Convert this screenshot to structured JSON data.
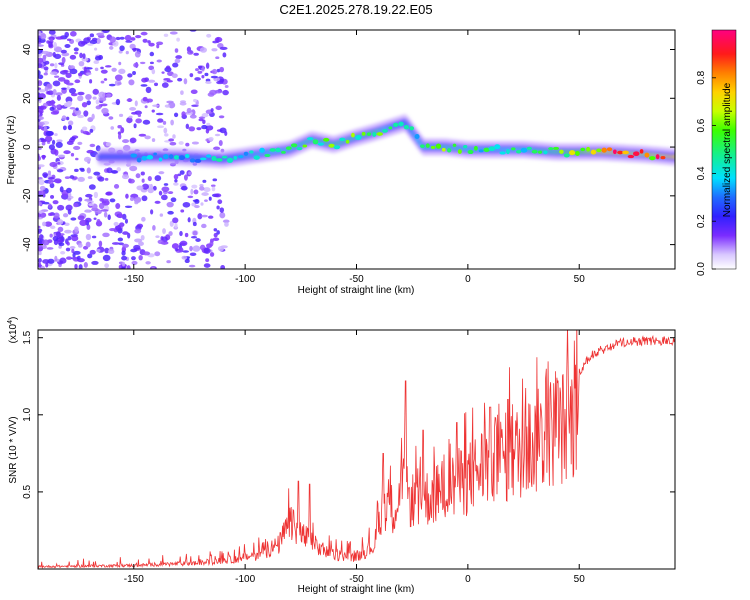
{
  "title": "C2E1.2025.278.19.22.E05",
  "chart_data": [
    {
      "type": "heatmap",
      "name": "spectrogram",
      "xlabel": "Height of straight line (km)",
      "ylabel": "Frequency (Hz)",
      "xlim": [
        -193,
        93
      ],
      "ylim": [
        -50,
        48
      ],
      "xticks": [
        -150,
        -100,
        -50,
        0,
        50
      ],
      "yticks": [
        -40,
        -20,
        0,
        20,
        40
      ],
      "xtick_labels": [
        "-150",
        "-100",
        "-50",
        "0",
        "50"
      ],
      "ytick_labels": [
        "-40",
        "-20",
        "0",
        "20",
        "40"
      ],
      "colorbar": {
        "label": "Normalized spectral amplitude",
        "range": [
          0,
          1
        ],
        "ticks": [
          0.0,
          0.2,
          0.4,
          0.6,
          0.8
        ],
        "tick_labels": [
          "0.0",
          "0.2",
          "0.4",
          "0.6",
          "0.8"
        ]
      },
      "ridge": {
        "x": [
          -150,
          -130,
          -110,
          -95,
          -80,
          -70,
          -60,
          -50,
          -42,
          -35,
          -28,
          -20,
          -10,
          0,
          10,
          25,
          40,
          60,
          80,
          92
        ],
        "y": [
          -4,
          -4,
          -5,
          -3,
          -1,
          3,
          1,
          4,
          6,
          8,
          10,
          0,
          0,
          -1,
          -1,
          -1,
          -2,
          -2,
          -3,
          -4
        ],
        "amplitude": [
          0.35,
          0.38,
          0.4,
          0.45,
          0.5,
          0.55,
          0.6,
          0.55,
          0.6,
          0.45,
          0.4,
          0.5,
          0.55,
          0.5,
          0.45,
          0.5,
          0.6,
          0.85,
          0.8,
          0.9
        ]
      }
    },
    {
      "type": "line",
      "name": "snr",
      "xlabel": "Height of straight line (km)",
      "ylabel": "SNR (10 * V/V)",
      "scale_label": "(x10",
      "scale_exponent": "4",
      "scale_suffix": ")",
      "xlim": [
        -193,
        93
      ],
      "ylim": [
        0,
        1.55
      ],
      "xticks": [
        -150,
        -100,
        -50,
        0,
        50
      ],
      "yticks": [
        0.5,
        1.0,
        1.5
      ],
      "xtick_labels": [
        "-150",
        "-100",
        "-50",
        "0",
        "50"
      ],
      "ytick_labels": [
        "0.5",
        "1.0",
        "1.5"
      ],
      "color": "#ee3333",
      "envelope": {
        "x": [
          -193,
          -150,
          -120,
          -105,
          -95,
          -85,
          -80,
          -75,
          -70,
          -65,
          -60,
          -50,
          -42,
          -38,
          -33,
          -30,
          -27,
          -22,
          -18,
          -12,
          -6,
          0,
          6,
          12,
          20,
          30,
          40,
          45,
          50,
          55,
          60,
          65,
          70,
          80,
          93
        ],
        "y": [
          0.02,
          0.03,
          0.05,
          0.08,
          0.12,
          0.2,
          0.38,
          0.3,
          0.22,
          0.15,
          0.12,
          0.1,
          0.2,
          0.55,
          0.5,
          0.7,
          0.6,
          0.55,
          0.6,
          0.65,
          0.7,
          0.75,
          0.85,
          0.9,
          0.95,
          1.05,
          1.18,
          1.2,
          1.28,
          1.38,
          1.42,
          1.45,
          1.47,
          1.48,
          1.48
        ]
      },
      "spikes": [
        {
          "x": -76,
          "y": 0.57
        },
        {
          "x": -71,
          "y": 0.55
        },
        {
          "x": -38,
          "y": 0.75
        },
        {
          "x": -28,
          "y": 1.22
        },
        {
          "x": -20,
          "y": 0.9
        },
        {
          "x": -5,
          "y": 0.95
        },
        {
          "x": 10,
          "y": 1.05
        },
        {
          "x": 18,
          "y": 1.1
        }
      ]
    }
  ]
}
